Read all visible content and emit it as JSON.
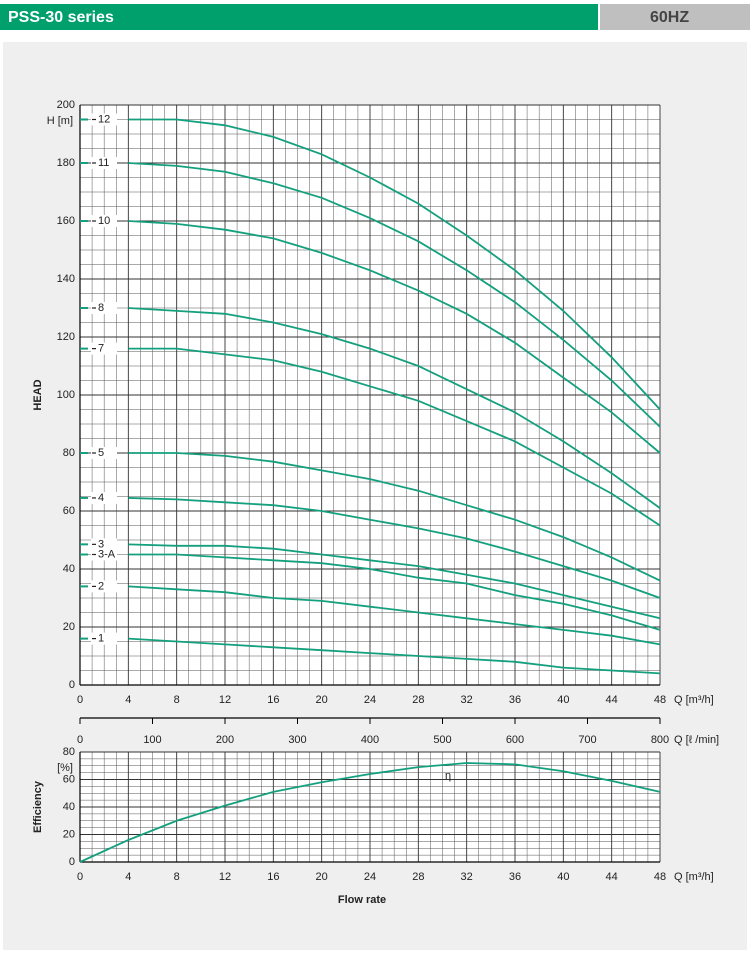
{
  "header": {
    "title": "PSS-30 series",
    "tag": "60HZ"
  },
  "chart_data": [
    {
      "type": "line",
      "xunit": "Q [m³/h]",
      "ylabel": "HEAD",
      "yunit": "H [m]",
      "x": [
        4,
        8,
        12,
        16,
        20,
        24,
        28,
        32,
        36,
        40,
        44,
        48
      ],
      "xlim": [
        0,
        48
      ],
      "xticks": [
        0,
        4,
        8,
        12,
        16,
        20,
        24,
        28,
        32,
        36,
        40,
        44,
        48
      ],
      "ylim": [
        0,
        200
      ],
      "yticks": [
        0,
        20,
        40,
        60,
        80,
        100,
        120,
        140,
        160,
        180,
        200
      ],
      "x2unit": "Q [ℓ /min]",
      "x2lim": [
        0,
        800
      ],
      "x2ticks": [
        0,
        100,
        200,
        300,
        400,
        500,
        600,
        700,
        800
      ],
      "grid": true,
      "series": [
        {
          "name": "12",
          "color": "#14a07e",
          "values": [
            195,
            195,
            193,
            189,
            183,
            175,
            166,
            155,
            143,
            129,
            113,
            95
          ]
        },
        {
          "name": "11",
          "color": "#14a07e",
          "values": [
            180,
            179,
            177,
            173,
            168,
            161,
            153,
            143,
            132,
            119,
            105,
            89
          ]
        },
        {
          "name": "10",
          "color": "#14a07e",
          "values": [
            160,
            159,
            157,
            154,
            149,
            143,
            136,
            128,
            118,
            106,
            94,
            80
          ]
        },
        {
          "name": "8",
          "color": "#14a07e",
          "values": [
            130,
            129,
            128,
            125,
            121,
            116,
            110,
            102,
            94,
            84,
            73,
            61
          ]
        },
        {
          "name": "7",
          "color": "#14a07e",
          "values": [
            116,
            116,
            114,
            112,
            108,
            103,
            98,
            91,
            84,
            75,
            66,
            55
          ]
        },
        {
          "name": "5",
          "color": "#14a07e",
          "values": [
            80,
            80,
            79,
            77,
            74,
            71,
            67,
            62,
            57,
            51,
            44,
            36
          ]
        },
        {
          "name": "4",
          "color": "#14a07e",
          "values": [
            64.5,
            64,
            63,
            62,
            60,
            57,
            54,
            50.5,
            46,
            41,
            36,
            30
          ]
        },
        {
          "name": "3",
          "color": "#14a07e",
          "values": [
            48.5,
            48,
            48,
            47,
            45,
            43,
            41,
            38,
            35,
            31,
            27,
            23
          ]
        },
        {
          "name": "3-A",
          "color": "#14a07e",
          "values": [
            45,
            45,
            44,
            43,
            42,
            40,
            37,
            35,
            31,
            28,
            24,
            19
          ]
        },
        {
          "name": "2",
          "color": "#14a07e",
          "values": [
            34,
            33,
            32,
            30,
            29,
            27,
            25,
            23,
            21,
            19,
            17,
            14
          ]
        },
        {
          "name": "1",
          "color": "#14a07e",
          "values": [
            16,
            15,
            14,
            13,
            12,
            11,
            10,
            9,
            8,
            6,
            5,
            4
          ]
        }
      ]
    },
    {
      "type": "line",
      "xunit": "Q [m³/h]",
      "xlabel": "Flow rate",
      "ylabel": "Efficiency",
      "yunit": "[%]",
      "x": [
        0,
        4,
        8,
        12,
        16,
        20,
        24,
        28,
        32,
        36,
        40,
        44,
        48
      ],
      "xlim": [
        0,
        48
      ],
      "xticks": [
        0,
        4,
        8,
        12,
        16,
        20,
        24,
        28,
        32,
        36,
        40,
        44,
        48
      ],
      "ylim": [
        0,
        80
      ],
      "yticks": [
        0,
        20,
        40,
        60,
        80
      ],
      "grid": true,
      "series": [
        {
          "name": "η",
          "color": "#14a07e",
          "values": [
            0,
            16,
            30,
            41,
            51,
            58,
            64,
            69,
            72,
            71,
            66,
            59,
            51
          ]
        }
      ]
    }
  ]
}
